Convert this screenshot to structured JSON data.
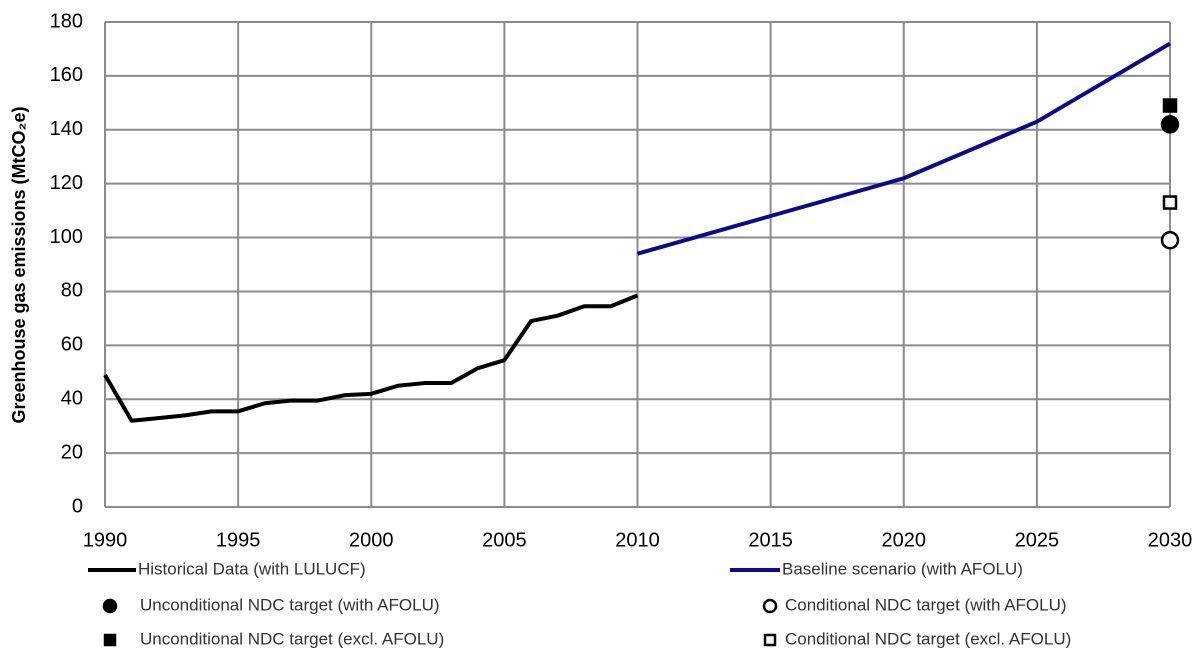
{
  "chart_data": {
    "type": "line",
    "y_label": "Greenhouse gas emissions (MtCO₂e)",
    "xlim": [
      1990,
      2030
    ],
    "ylim": [
      0,
      180
    ],
    "xticks": [
      1990,
      1995,
      2000,
      2005,
      2010,
      2015,
      2020,
      2025,
      2030
    ],
    "yticks": [
      0,
      20,
      40,
      60,
      80,
      100,
      120,
      140,
      160,
      180
    ],
    "grid": true,
    "series": [
      {
        "name": "Historical Data (with LULUCF)",
        "color": "#000000",
        "marker": "line",
        "x": [
          1990,
          1991,
          1992,
          1993,
          1994,
          1995,
          1996,
          1997,
          1998,
          1999,
          2000,
          2001,
          2002,
          2003,
          2004,
          2005,
          2006,
          2007,
          2008,
          2009,
          2010
        ],
        "values": [
          49,
          32,
          33,
          34,
          35.5,
          35.5,
          38.5,
          39.5,
          39.5,
          41.5,
          42,
          45,
          46,
          46,
          51.5,
          54.5,
          69,
          71,
          74.5,
          74.5,
          78.5
        ]
      },
      {
        "name": "Baseline scenario (with AFOLU)",
        "color": "#0a0a8a",
        "marker": "line",
        "x": [
          2010,
          2015,
          2020,
          2025,
          2030
        ],
        "values": [
          94,
          108,
          122,
          143,
          172
        ]
      },
      {
        "name": "Unconditional NDC target (with AFOLU)",
        "color": "#000000",
        "marker": "filled-circle",
        "x": [
          2030
        ],
        "values": [
          142
        ]
      },
      {
        "name": "Conditional NDC target (with AFOLU)",
        "color": "#000000",
        "marker": "open-circle",
        "x": [
          2030
        ],
        "values": [
          99
        ]
      },
      {
        "name": "Unconditional NDC target (excl. AFOLU)",
        "color": "#000000",
        "marker": "filled-square",
        "x": [
          2030
        ],
        "values": [
          149
        ]
      },
      {
        "name": "Conditional NDC target (excl. AFOLU)",
        "color": "#000000",
        "marker": "open-square",
        "x": [
          2030
        ],
        "values": [
          113
        ]
      }
    ]
  }
}
